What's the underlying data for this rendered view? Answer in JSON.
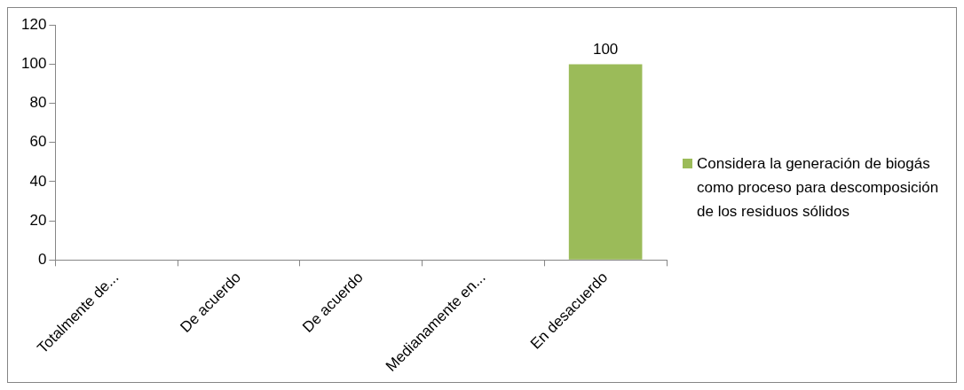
{
  "chart_data": {
    "type": "bar",
    "categories": [
      "Totalmente de...",
      "De acuerdo",
      "De acuerdo",
      "Medianamente en...",
      "En desacuerdo"
    ],
    "series": [
      {
        "name": "Considera la generación de biogás como proceso para descomposición de los residuos sólidos",
        "color": "#9bbb59",
        "values": [
          0,
          0,
          0,
          0,
          100
        ],
        "value_labels": [
          null,
          null,
          null,
          null,
          "100"
        ]
      }
    ],
    "ylim": [
      0,
      120
    ],
    "yticks": [
      0,
      20,
      40,
      60,
      80,
      100,
      120
    ],
    "grid": false,
    "legend": "right"
  }
}
